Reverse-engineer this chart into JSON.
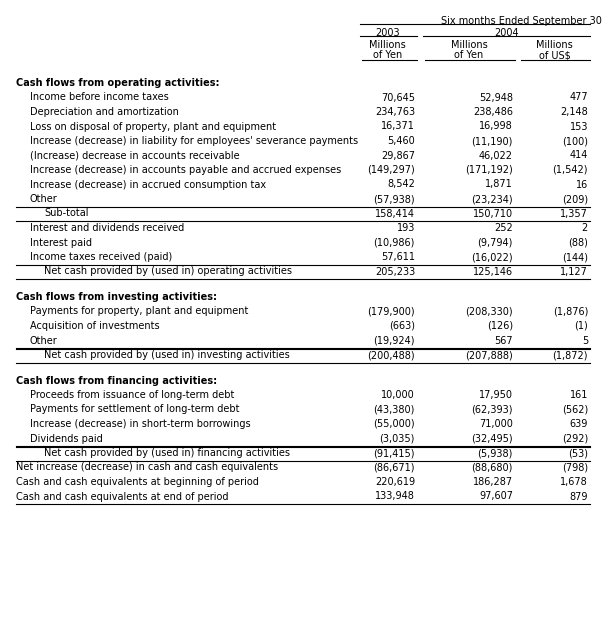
{
  "title": "Six months Ended September 30",
  "col1_year": "2003",
  "col23_year": "2004",
  "subheader1": [
    "Millions",
    "of Yen"
  ],
  "subheader2": [
    "Millions",
    "of Yen"
  ],
  "subheader3": [
    "Millions",
    "of US$"
  ],
  "rows": [
    {
      "label": "Cash flows from operating activities:",
      "v1": "",
      "v2": "",
      "v3": "",
      "style": "bold_header",
      "indent": 0
    },
    {
      "label": "Income before income taxes",
      "v1": "70,645",
      "v2": "52,948",
      "v3": "477",
      "style": "normal",
      "indent": 1
    },
    {
      "label": "Depreciation and amortization",
      "v1": "234,763",
      "v2": "238,486",
      "v3": "2,148",
      "style": "normal",
      "indent": 1
    },
    {
      "label": "Loss on disposal of property, plant and equipment",
      "v1": "16,371",
      "v2": "16,998",
      "v3": "153",
      "style": "normal",
      "indent": 1
    },
    {
      "label": "Increase (decrease) in liability for employees' severance payments",
      "v1": "5,460",
      "v2": "(11,190)",
      "v3": "(100)",
      "style": "normal",
      "indent": 1
    },
    {
      "label": "(Increase) decrease in accounts receivable",
      "v1": "29,867",
      "v2": "46,022",
      "v3": "414",
      "style": "normal",
      "indent": 1
    },
    {
      "label": "Increase (decrease) in accounts payable and accrued expenses",
      "v1": "(149,297)",
      "v2": "(171,192)",
      "v3": "(1,542)",
      "style": "normal",
      "indent": 1
    },
    {
      "label": "Increase (decrease) in accrued consumption tax",
      "v1": "8,542",
      "v2": "1,871",
      "v3": "16",
      "style": "normal",
      "indent": 1
    },
    {
      "label": "Other",
      "v1": "(57,938)",
      "v2": "(23,234)",
      "v3": "(209)",
      "style": "line_below",
      "indent": 1
    },
    {
      "label": "Sub-total",
      "v1": "158,414",
      "v2": "150,710",
      "v3": "1,357",
      "style": "subtotal",
      "indent": 2
    },
    {
      "label": "Interest and dividends received",
      "v1": "193",
      "v2": "252",
      "v3": "2",
      "style": "normal",
      "indent": 1
    },
    {
      "label": "Interest paid",
      "v1": "(10,986)",
      "v2": "(9,794)",
      "v3": "(88)",
      "style": "normal",
      "indent": 1
    },
    {
      "label": "Income taxes received (paid)",
      "v1": "57,611",
      "v2": "(16,022)",
      "v3": "(144)",
      "style": "normal",
      "indent": 1
    },
    {
      "label": "Net cash provided by (used in) operating activities",
      "v1": "205,233",
      "v2": "125,146",
      "v3": "1,127",
      "style": "net_line",
      "indent": 2
    },
    {
      "label": "",
      "v1": "",
      "v2": "",
      "v3": "",
      "style": "spacer",
      "indent": 0
    },
    {
      "label": "Cash flows from investing activities:",
      "v1": "",
      "v2": "",
      "v3": "",
      "style": "bold_header",
      "indent": 0
    },
    {
      "label": "Payments for property, plant and equipment",
      "v1": "(179,900)",
      "v2": "(208,330)",
      "v3": "(1,876)",
      "style": "normal",
      "indent": 1
    },
    {
      "label": "Acquisition of investments",
      "v1": "(663)",
      "v2": "(126)",
      "v3": "(1)",
      "style": "normal",
      "indent": 1
    },
    {
      "label": "Other",
      "v1": "(19,924)",
      "v2": "567",
      "v3": "5",
      "style": "line_below",
      "indent": 1
    },
    {
      "label": "Net cash provided by (used in) investing activities",
      "v1": "(200,488)",
      "v2": "(207,888)",
      "v3": "(1,872)",
      "style": "net_line",
      "indent": 2
    },
    {
      "label": "",
      "v1": "",
      "v2": "",
      "v3": "",
      "style": "spacer",
      "indent": 0
    },
    {
      "label": "Cash flows from financing activities:",
      "v1": "",
      "v2": "",
      "v3": "",
      "style": "bold_header",
      "indent": 0
    },
    {
      "label": "Proceeds from issuance of long-term debt",
      "v1": "10,000",
      "v2": "17,950",
      "v3": "161",
      "style": "normal",
      "indent": 1
    },
    {
      "label": "Payments for settlement of long-term debt",
      "v1": "(43,380)",
      "v2": "(62,393)",
      "v3": "(562)",
      "style": "normal",
      "indent": 1
    },
    {
      "label": "Increase (decrease) in short-term borrowings",
      "v1": "(55,000)",
      "v2": "71,000",
      "v3": "639",
      "style": "normal",
      "indent": 1
    },
    {
      "label": "Dividends paid",
      "v1": "(3,035)",
      "v2": "(32,495)",
      "v3": "(292)",
      "style": "line_below",
      "indent": 1
    },
    {
      "label": "Net cash provided by (used in) financing activities",
      "v1": "(91,415)",
      "v2": "(5,938)",
      "v3": "(53)",
      "style": "net_line",
      "indent": 2
    },
    {
      "label": "Net increase (decrease) in cash and cash equivalents",
      "v1": "(86,671)",
      "v2": "(88,680)",
      "v3": "(798)",
      "style": "normal",
      "indent": 0
    },
    {
      "label": "Cash and cash equivalents at beginning of period",
      "v1": "220,619",
      "v2": "186,287",
      "v3": "1,678",
      "style": "normal",
      "indent": 0
    },
    {
      "label": "Cash and cash equivalents at end of period",
      "v1": "133,948",
      "v2": "97,607",
      "v3": "879",
      "style": "last_line",
      "indent": 0
    }
  ],
  "bg_color": "#ffffff",
  "text_color": "#000000"
}
